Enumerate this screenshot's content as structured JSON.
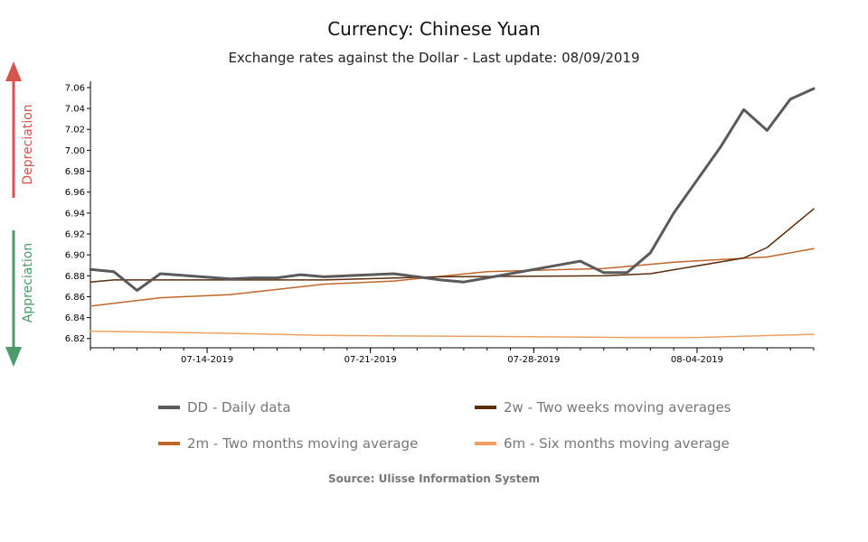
{
  "title": "Currency: Chinese Yuan",
  "subtitle": "Exchange rates against the Dollar - Last update: 08/09/2019",
  "indicators": {
    "up": {
      "label": "Depreciation",
      "color": "#d9534f"
    },
    "down": {
      "label": "Appreciation",
      "color": "#4a9a6a"
    }
  },
  "source": "Source: Ulisse Information System",
  "chart_data": {
    "type": "line",
    "title": "Currency: Chinese Yuan",
    "subtitle": "Exchange rates against the Dollar - Last update: 08/09/2019",
    "x_range": [
      "07-09-2019",
      "08-09-2019"
    ],
    "ylim": [
      6.812,
      7.066
    ],
    "y_ticks": [
      "6.82",
      "6.84",
      "6.86",
      "6.88",
      "6.90",
      "6.92",
      "6.94",
      "6.96",
      "6.98",
      "7.00",
      "7.02",
      "7.04",
      "7.06"
    ],
    "x_ticks": [
      {
        "date": "07-14-2019",
        "label": "07-14-2019"
      },
      {
        "date": "07-21-2019",
        "label": "07-21-2019"
      },
      {
        "date": "07-28-2019",
        "label": "07-28-2019"
      },
      {
        "date": "08-04-2019",
        "label": "08-04-2019"
      }
    ],
    "grid": false,
    "legend_placement": "bottom",
    "series": [
      {
        "name": "DD - Daily data",
        "color": "#5a5a5a",
        "width": 3,
        "points": [
          [
            "07-09-2019",
            6.886
          ],
          [
            "07-10-2019",
            6.884
          ],
          [
            "07-11-2019",
            6.866
          ],
          [
            "07-12-2019",
            6.882
          ],
          [
            "07-15-2019",
            6.877
          ],
          [
            "07-16-2019",
            6.878
          ],
          [
            "07-17-2019",
            6.878
          ],
          [
            "07-18-2019",
            6.881
          ],
          [
            "07-19-2019",
            6.879
          ],
          [
            "07-22-2019",
            6.882
          ],
          [
            "07-23-2019",
            6.879
          ],
          [
            "07-24-2019",
            6.876
          ],
          [
            "07-25-2019",
            6.874
          ],
          [
            "07-26-2019",
            6.878
          ],
          [
            "07-29-2019",
            6.89
          ],
          [
            "07-30-2019",
            6.894
          ],
          [
            "07-31-2019",
            6.883
          ],
          [
            "08-01-2019",
            6.883
          ],
          [
            "08-02-2019",
            6.902
          ],
          [
            "08-03-2019",
            6.94
          ],
          [
            "08-05-2019",
            7.003
          ],
          [
            "08-06-2019",
            7.039
          ],
          [
            "08-07-2019",
            7.019
          ],
          [
            "08-08-2019",
            7.049
          ],
          [
            "08-08-2019",
            7.049
          ],
          [
            "08-09-2019",
            7.059
          ]
        ]
      },
      {
        "name": "2w - Two weeks moving averages",
        "color": "#5a2d0c",
        "width": 1.5,
        "points": [
          [
            "07-09-2019",
            6.874
          ],
          [
            "07-10-2019",
            6.876
          ],
          [
            "07-12-2019",
            6.876
          ],
          [
            "07-19-2019",
            6.876
          ],
          [
            "07-24-2019",
            6.879
          ],
          [
            "07-31-2019",
            6.88
          ],
          [
            "08-02-2019",
            6.882
          ],
          [
            "08-06-2019",
            6.897
          ],
          [
            "08-07-2019",
            6.907
          ],
          [
            "08-09-2019",
            6.944
          ]
        ]
      },
      {
        "name": "2m - Two months moving average",
        "color": "#c0662a",
        "width": 1.5,
        "points": [
          [
            "07-09-2019",
            6.851
          ],
          [
            "07-12-2019",
            6.859
          ],
          [
            "07-15-2019",
            6.862
          ],
          [
            "07-19-2019",
            6.872
          ],
          [
            "07-22-2019",
            6.875
          ],
          [
            "07-26-2019",
            6.884
          ],
          [
            "07-31-2019",
            6.887
          ],
          [
            "08-02-2019",
            6.891
          ],
          [
            "08-03-2019",
            6.893
          ],
          [
            "08-07-2019",
            6.898
          ],
          [
            "08-09-2019",
            6.906
          ]
        ]
      },
      {
        "name": "6m - Six months moving average",
        "color": "#f0a060",
        "width": 1.5,
        "points": [
          [
            "07-09-2019",
            6.827
          ],
          [
            "07-12-2019",
            6.826
          ],
          [
            "07-15-2019",
            6.825
          ],
          [
            "07-19-2019",
            6.823
          ],
          [
            "07-26-2019",
            6.822
          ],
          [
            "08-01-2019",
            6.821
          ],
          [
            "08-04-2019",
            6.821
          ],
          [
            "08-09-2019",
            6.824
          ]
        ]
      }
    ]
  }
}
